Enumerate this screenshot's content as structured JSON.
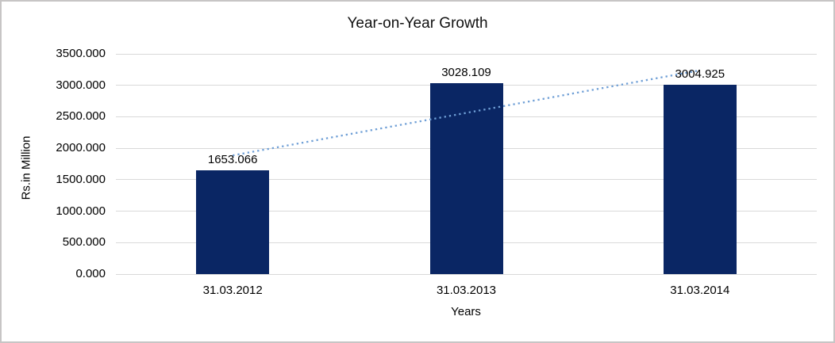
{
  "chart": {
    "title": "Year-on-Year Growth",
    "y_axis_title": "Rs.in Million",
    "x_axis_title": "Years"
  },
  "chart_data": {
    "type": "bar",
    "title": "Year-on-Year Growth",
    "xlabel": "Years",
    "ylabel": "Rs.in Million",
    "categories": [
      "31.03.2012",
      "31.03.2013",
      "31.03.2014"
    ],
    "values": [
      1653.066,
      3028.109,
      3004.925
    ],
    "data_labels": [
      "1653.066",
      "3028.109",
      "3004.925"
    ],
    "y_tick_labels": [
      "3500.000",
      "3000.000",
      "2500.000",
      "2000.000",
      "1500.000",
      "1000.000",
      "500.000",
      "0.000"
    ],
    "y_tick_values": [
      3500,
      3000,
      2500,
      2000,
      1500,
      1000,
      500,
      0
    ],
    "ylim": [
      0,
      3500
    ],
    "grid": true,
    "legend": "none",
    "bar_color": "#0a2664",
    "gridline_color": "#d9d9d9",
    "trendline": {
      "type": "linear",
      "style": "dotted",
      "color": "#6f9fd6",
      "start_value": 1886,
      "end_value": 3238
    }
  }
}
